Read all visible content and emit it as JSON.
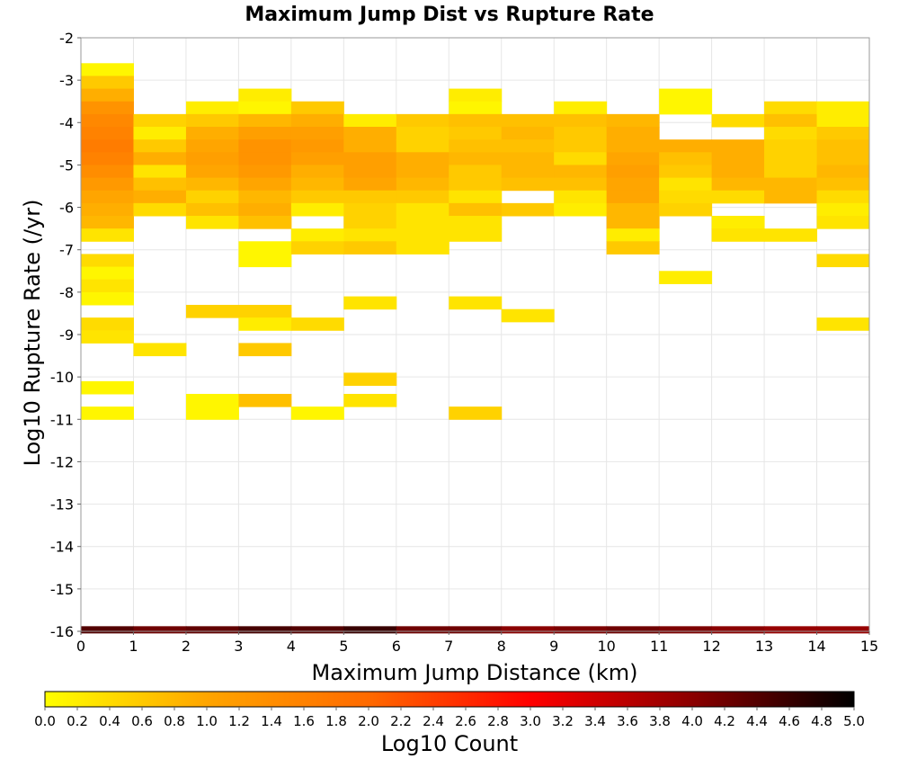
{
  "chart_data": {
    "type": "heatmap",
    "title": "Maximum Jump Dist vs Rupture Rate",
    "xlabel": "Maximum Jump Distance (km)",
    "ylabel": "Log10 Rupture Rate (/yr)",
    "colorbar_label": "Log10 Count",
    "xlim": [
      0,
      15
    ],
    "ylim": [
      -16,
      -2
    ],
    "x_ticks": [
      "0",
      "1",
      "2",
      "3",
      "4",
      "5",
      "6",
      "7",
      "8",
      "9",
      "10",
      "11",
      "12",
      "13",
      "14",
      "15"
    ],
    "y_ticks": [
      "-2",
      "-3",
      "-4",
      "-5",
      "-6",
      "-7",
      "-8",
      "-9",
      "-10",
      "-11",
      "-12",
      "-13",
      "-14",
      "-15",
      "-16"
    ],
    "colorbar_range": [
      0,
      5
    ],
    "colorbar_ticks": [
      "0.0",
      "0.2",
      "0.4",
      "0.6",
      "0.8",
      "1.0",
      "1.2",
      "1.4",
      "1.6",
      "1.8",
      "2.0",
      "2.2",
      "2.4",
      "2.6",
      "2.8",
      "3.0",
      "3.2",
      "3.4",
      "3.6",
      "3.8",
      "4.0",
      "4.2",
      "4.4",
      "4.6",
      "4.8",
      "5.0"
    ],
    "colormap": [
      "#ffff00",
      "#ffa500",
      "#ff6a00",
      "#ff0000",
      "#8b0000",
      "#000000"
    ],
    "grid": true,
    "bin_width": 1,
    "bin_height": 0.3,
    "cells": [
      [
        0,
        -2.75,
        0.1
      ],
      [
        0,
        -3.05,
        0.6
      ],
      [
        0,
        -3.35,
        0.9
      ],
      [
        0,
        -3.65,
        1.3
      ],
      [
        0,
        -3.95,
        1.5
      ],
      [
        0,
        -4.25,
        1.6
      ],
      [
        0,
        -4.55,
        1.7
      ],
      [
        0,
        -4.85,
        1.6
      ],
      [
        0,
        -5.15,
        1.4
      ],
      [
        0,
        -5.45,
        1.2
      ],
      [
        0,
        -5.75,
        1.0
      ],
      [
        0,
        -6.05,
        0.9
      ],
      [
        0,
        -6.35,
        0.8
      ],
      [
        0,
        -6.65,
        0.3
      ],
      [
        0,
        -7.25,
        0.4
      ],
      [
        0,
        -7.55,
        0.1
      ],
      [
        0,
        -7.85,
        0.3
      ],
      [
        0,
        -8.15,
        0.1
      ],
      [
        0,
        -8.75,
        0.4
      ],
      [
        0,
        -9.05,
        0.3
      ],
      [
        0,
        -10.25,
        0.1
      ],
      [
        0,
        -10.85,
        0.1
      ],
      [
        1,
        -3.95,
        0.5
      ],
      [
        1,
        -4.25,
        0.2
      ],
      [
        1,
        -4.55,
        0.6
      ],
      [
        1,
        -4.85,
        0.9
      ],
      [
        1,
        -5.15,
        0.3
      ],
      [
        1,
        -5.45,
        0.7
      ],
      [
        1,
        -5.75,
        0.9
      ],
      [
        1,
        -6.05,
        0.4
      ],
      [
        1,
        -9.35,
        0.3
      ],
      [
        2,
        -3.65,
        0.2
      ],
      [
        2,
        -3.95,
        0.6
      ],
      [
        2,
        -4.25,
        0.9
      ],
      [
        2,
        -4.55,
        1.0
      ],
      [
        2,
        -4.85,
        1.1
      ],
      [
        2,
        -5.15,
        1.0
      ],
      [
        2,
        -5.45,
        0.8
      ],
      [
        2,
        -5.75,
        0.5
      ],
      [
        2,
        -6.05,
        0.7
      ],
      [
        2,
        -6.35,
        0.3
      ],
      [
        2,
        -8.45,
        0.5
      ],
      [
        2,
        -10.55,
        0.1
      ],
      [
        2,
        -10.85,
        0.1
      ],
      [
        3,
        -3.35,
        0.2
      ],
      [
        3,
        -3.65,
        0.1
      ],
      [
        3,
        -3.95,
        0.8
      ],
      [
        3,
        -4.25,
        1.1
      ],
      [
        3,
        -4.55,
        1.3
      ],
      [
        3,
        -4.85,
        1.3
      ],
      [
        3,
        -5.15,
        1.2
      ],
      [
        3,
        -5.45,
        1.0
      ],
      [
        3,
        -5.75,
        0.8
      ],
      [
        3,
        -6.05,
        0.9
      ],
      [
        3,
        -6.35,
        0.7
      ],
      [
        3,
        -6.95,
        0.1
      ],
      [
        3,
        -7.25,
        0.1
      ],
      [
        3,
        -8.45,
        0.5
      ],
      [
        3,
        -8.75,
        0.2
      ],
      [
        3,
        -9.35,
        0.6
      ],
      [
        3,
        -10.55,
        0.7
      ],
      [
        4,
        -3.65,
        0.6
      ],
      [
        4,
        -3.95,
        0.9
      ],
      [
        4,
        -4.25,
        1.1
      ],
      [
        4,
        -4.55,
        1.2
      ],
      [
        4,
        -4.85,
        1.1
      ],
      [
        4,
        -5.15,
        0.9
      ],
      [
        4,
        -5.45,
        0.8
      ],
      [
        4,
        -5.75,
        0.6
      ],
      [
        4,
        -6.05,
        0.2
      ],
      [
        4,
        -6.65,
        0.2
      ],
      [
        4,
        -6.95,
        0.5
      ],
      [
        4,
        -8.75,
        0.4
      ],
      [
        4,
        -10.85,
        0.1
      ],
      [
        5,
        -3.95,
        0.2
      ],
      [
        5,
        -4.25,
        0.9
      ],
      [
        5,
        -4.55,
        0.9
      ],
      [
        5,
        -4.85,
        1.1
      ],
      [
        5,
        -5.15,
        1.1
      ],
      [
        5,
        -5.45,
        1.0
      ],
      [
        5,
        -5.75,
        0.6
      ],
      [
        5,
        -6.05,
        0.5
      ],
      [
        5,
        -6.35,
        0.5
      ],
      [
        5,
        -6.65,
        0.3
      ],
      [
        5,
        -6.95,
        0.6
      ],
      [
        5,
        -8.25,
        0.3
      ],
      [
        5,
        -10.05,
        0.5
      ],
      [
        5,
        -10.55,
        0.3
      ],
      [
        6,
        -3.95,
        0.6
      ],
      [
        6,
        -4.25,
        0.5
      ],
      [
        6,
        -4.55,
        0.5
      ],
      [
        6,
        -4.85,
        0.9
      ],
      [
        6,
        -5.15,
        0.9
      ],
      [
        6,
        -5.45,
        0.8
      ],
      [
        6,
        -5.75,
        0.6
      ],
      [
        6,
        -6.05,
        0.3
      ],
      [
        6,
        -6.35,
        0.3
      ],
      [
        6,
        -6.65,
        0.3
      ],
      [
        6,
        -6.95,
        0.3
      ],
      [
        7,
        -3.35,
        0.2
      ],
      [
        7,
        -3.65,
        0.1
      ],
      [
        7,
        -3.95,
        0.7
      ],
      [
        7,
        -4.25,
        0.6
      ],
      [
        7,
        -4.55,
        0.7
      ],
      [
        7,
        -4.85,
        0.8
      ],
      [
        7,
        -5.15,
        0.6
      ],
      [
        7,
        -5.45,
        0.6
      ],
      [
        7,
        -5.75,
        0.3
      ],
      [
        7,
        -6.05,
        0.7
      ],
      [
        7,
        -6.35,
        0.3
      ],
      [
        7,
        -6.65,
        0.3
      ],
      [
        7,
        -8.25,
        0.3
      ],
      [
        7,
        -10.85,
        0.5
      ],
      [
        8,
        -3.95,
        0.7
      ],
      [
        8,
        -4.25,
        0.8
      ],
      [
        8,
        -4.55,
        0.7
      ],
      [
        8,
        -4.85,
        0.8
      ],
      [
        8,
        -5.15,
        0.8
      ],
      [
        8,
        -5.45,
        0.7
      ],
      [
        8,
        -6.05,
        0.6
      ],
      [
        8,
        -8.55,
        0.3
      ],
      [
        9,
        -3.65,
        0.2
      ],
      [
        9,
        -3.95,
        0.7
      ],
      [
        9,
        -4.25,
        0.6
      ],
      [
        9,
        -4.55,
        0.6
      ],
      [
        9,
        -4.85,
        0.4
      ],
      [
        9,
        -5.15,
        0.8
      ],
      [
        9,
        -5.45,
        0.7
      ],
      [
        9,
        -5.75,
        0.3
      ],
      [
        9,
        -6.05,
        0.2
      ],
      [
        10,
        -3.95,
        0.8
      ],
      [
        10,
        -4.25,
        0.9
      ],
      [
        10,
        -4.55,
        0.9
      ],
      [
        10,
        -4.85,
        1.0
      ],
      [
        10,
        -5.15,
        1.1
      ],
      [
        10,
        -5.45,
        1.0
      ],
      [
        10,
        -5.75,
        1.0
      ],
      [
        10,
        -6.05,
        0.8
      ],
      [
        10,
        -6.35,
        0.8
      ],
      [
        10,
        -6.65,
        0.2
      ],
      [
        10,
        -6.95,
        0.6
      ],
      [
        11,
        -3.35,
        0.1
      ],
      [
        11,
        -3.65,
        0.1
      ],
      [
        11,
        -4.55,
        0.9
      ],
      [
        11,
        -4.85,
        0.7
      ],
      [
        11,
        -5.15,
        0.6
      ],
      [
        11,
        -5.45,
        0.3
      ],
      [
        11,
        -5.75,
        0.4
      ],
      [
        11,
        -6.05,
        0.5
      ],
      [
        11,
        -7.65,
        0.2
      ],
      [
        12,
        -3.95,
        0.4
      ],
      [
        12,
        -4.55,
        0.9
      ],
      [
        12,
        -4.85,
        0.9
      ],
      [
        12,
        -5.15,
        0.9
      ],
      [
        12,
        -5.45,
        0.8
      ],
      [
        12,
        -5.75,
        0.4
      ],
      [
        12,
        -6.35,
        0.2
      ],
      [
        12,
        -6.65,
        0.3
      ],
      [
        13,
        -3.65,
        0.4
      ],
      [
        13,
        -3.95,
        0.7
      ],
      [
        13,
        -4.25,
        0.4
      ],
      [
        13,
        -4.55,
        0.5
      ],
      [
        13,
        -4.85,
        0.5
      ],
      [
        13,
        -5.15,
        0.5
      ],
      [
        13,
        -5.45,
        0.8
      ],
      [
        13,
        -5.75,
        0.8
      ],
      [
        13,
        -6.65,
        0.3
      ],
      [
        14,
        -3.65,
        0.2
      ],
      [
        14,
        -3.95,
        0.2
      ],
      [
        14,
        -4.25,
        0.6
      ],
      [
        14,
        -4.55,
        0.7
      ],
      [
        14,
        -4.85,
        0.7
      ],
      [
        14,
        -5.15,
        0.8
      ],
      [
        14,
        -5.45,
        0.7
      ],
      [
        14,
        -5.75,
        0.4
      ],
      [
        14,
        -6.05,
        0.2
      ],
      [
        14,
        -6.35,
        0.3
      ],
      [
        14,
        -7.25,
        0.4
      ],
      [
        14,
        -8.75,
        0.3
      ]
    ],
    "floor_band": {
      "y": -16,
      "values": [
        4.4,
        4.2,
        4.3,
        4.5,
        4.4,
        4.6,
        4.2,
        4.2,
        4.0,
        4.1,
        4.2,
        4.1,
        4.0,
        3.9,
        3.9
      ]
    }
  }
}
